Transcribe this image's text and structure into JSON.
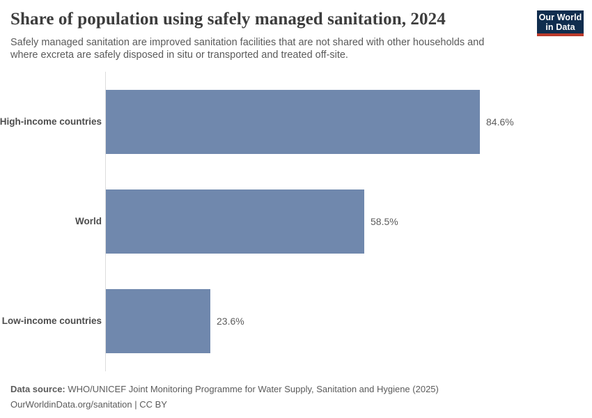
{
  "header": {
    "title": "Share of population using safely managed sanitation, 2024",
    "subtitle_lines": {
      "line1": "Safely managed sanitation are improved sanitation facilities that are not shared with other households and",
      "line2": "where excreta are safely disposed in situ or transported and treated off-site."
    },
    "logo": {
      "line1": "Our World",
      "line2": "in Data"
    }
  },
  "chart_data": {
    "type": "bar",
    "orientation": "horizontal",
    "title": "Share of population using safely managed sanitation, 2024",
    "categories": [
      "High-income countries",
      "World",
      "Low-income countries"
    ],
    "values": [
      84.6,
      58.5,
      23.6
    ],
    "value_labels": [
      "84.6%",
      "58.5%",
      "23.6%"
    ],
    "unit": "%",
    "xlim": [
      0,
      100
    ],
    "grid": false,
    "legend": "none",
    "bar_color": "#7088ad"
  },
  "footer": {
    "source_label": "Data source:",
    "source_text": " WHO/UNICEF Joint Monitoring Programme for Water Supply, Sanitation and Hygiene (2025)",
    "license_text": "OurWorldinData.org/sanitation | CC BY"
  },
  "colors": {
    "bar": "#7088ad",
    "axis_line": "#dcdcdc",
    "title_text": "#3d3d3d",
    "subtitle_text": "#5a5a5a",
    "logo_background": "#102d4e",
    "logo_accent": "#bb3a2b"
  }
}
